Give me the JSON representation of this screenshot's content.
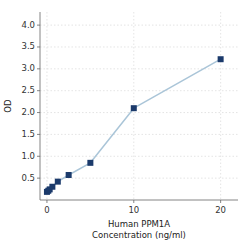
{
  "chart_data": {
    "type": "line",
    "xlabel": "Human PPM1A\nConcentration (ng/ml)",
    "ylabel": "OD",
    "x": [
      0,
      0.156,
      0.313,
      0.625,
      1.25,
      2.5,
      5,
      10,
      20
    ],
    "series": [
      {
        "color": "#aac5d8",
        "colors": [
          "#1b3a6b",
          "#1b3a6b",
          "#1b3a6b",
          "#1b3a6b",
          "#1b3a6b",
          "#1b3a6b",
          "#1b3a6b",
          "#1b3a6b",
          "#1b3a6b"
        ],
        "marker": "square",
        "values": [
          0.186,
          0.212,
          0.243,
          0.303,
          0.42,
          0.572,
          0.85,
          2.1,
          3.22
        ]
      }
    ],
    "xlim": [
      -0.8,
      22
    ],
    "ylim": [
      0,
      4.3
    ],
    "xticks": [
      0,
      10,
      20
    ],
    "yticks": [
      0.5,
      {
        "value": 1.0,
        "label": "1.0"
      },
      1.5,
      {
        "value": 2.0,
        "label": "2.0"
      },
      2.5,
      {
        "value": 3.0,
        "label": "3.0"
      },
      3.5,
      {
        "value": 4.0,
        "label": "4.0"
      }
    ],
    "grid": true
  }
}
